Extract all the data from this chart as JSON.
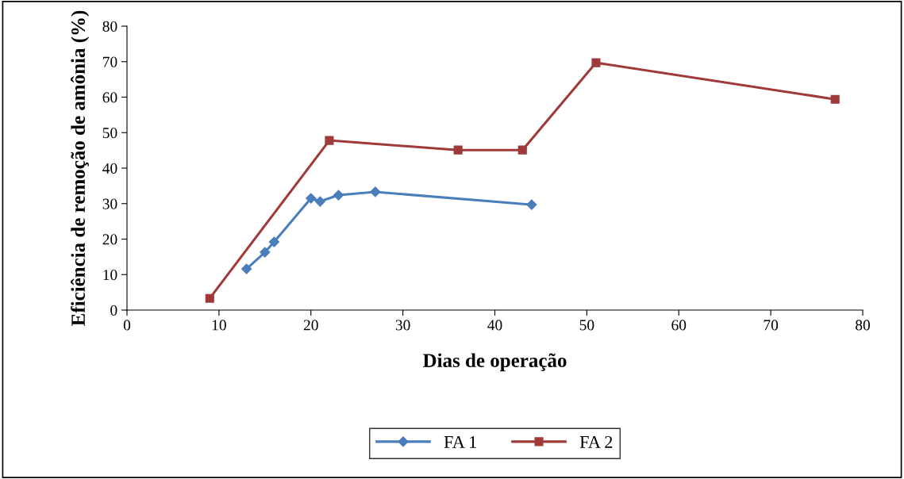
{
  "chart_data": {
    "type": "line",
    "xlabel": "Dias de operação",
    "ylabel": "Eficiência de remoção de amônia (%)",
    "xlim": [
      0,
      80
    ],
    "xticks": [
      0,
      10,
      20,
      30,
      40,
      50,
      60,
      70,
      80
    ],
    "ylim": [
      0,
      80
    ],
    "yticks": [
      0,
      10,
      20,
      30,
      40,
      50,
      60,
      70,
      80
    ],
    "grid": false,
    "legend": "bottom",
    "series": [
      {
        "name": "FA 1",
        "color": "#4a7ebb",
        "marker": "diamond",
        "x": [
          13,
          15,
          16,
          20,
          21,
          23,
          27,
          44
        ],
        "values": [
          11.6,
          16.3,
          19.2,
          31.5,
          30.6,
          32.4,
          33.3,
          29.7
        ]
      },
      {
        "name": "FA 2",
        "color": "#a03a3a",
        "marker": "square",
        "x": [
          9,
          22,
          36,
          43,
          51,
          77
        ],
        "values": [
          3.3,
          47.8,
          45.1,
          45.1,
          69.7,
          59.4
        ]
      }
    ]
  }
}
